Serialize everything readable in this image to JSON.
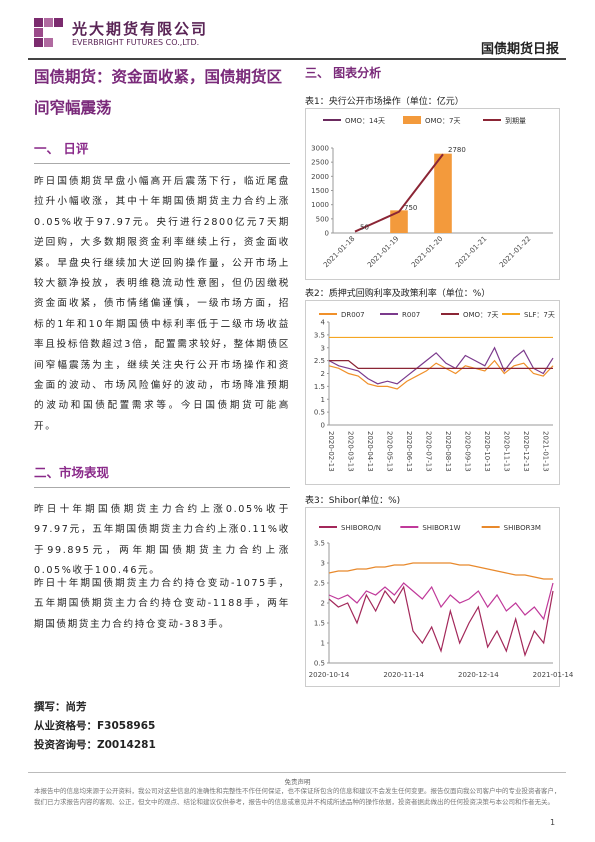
{
  "header": {
    "company_cn": "光大期货有限公司",
    "company_en": "EVERBRIGHT FUTURES CO.,LTD.",
    "report": "国债期货日报"
  },
  "headline": "国债期货：资金面收紧，国债期货区间窄幅震荡",
  "sections": [
    {
      "title": "一、 日评",
      "paragraphs": [
        "昨日国债期货早盘小幅高开后震荡下行，临近尾盘拉升小幅收涨，其中十年期国债期货主力合约上涨0.05%收于97.97元。央行进行2800亿元7天期逆回购，大多数期限资金利率继续上行，资金面收紧。早盘央行继续加大逆回购操作量，公开市场上较大额净投放，表明维稳流动性意图，但仍因缴税资金面收紧，债市情绪偏谨慎，一级市场方面，招标的1年和10年期国债中标利率低于二级市场收益率且投标倍数超过3倍，配置需求较好，整体期债区间窄幅震荡为主，继续关注央行公开市场操作和资金面的波动、市场风险偏好的波动，市场降准预期的波动和国债配置需求等。今日国债期货可能高开。"
      ]
    },
    {
      "title": "二、市场表现",
      "paragraphs": [
        "昨日十年期国债期货主力合约上涨0.05%收于97.97元，五年期国债期货主力合约上涨0.11%收于99.895元，两年期国债期货主力合约上涨0.05%收于100.46元。",
        "昨日十年期国债期货主力合约持仓变动-1075手，五年期国债期货主力合约持仓变动-1188手，两年期国债期货主力合约持仓变动-383手。"
      ]
    }
  ],
  "author": {
    "writer": "撰写：尚芳",
    "qualification": "从业资格号：F3058965",
    "consulting": "投资咨询号：Z0014281"
  },
  "right_title": "三、 图表分析",
  "chart_data": [
    {
      "type": "bar",
      "title": "表1：央行公开市场操作（单位：亿元）",
      "categories": [
        "2021-01-18",
        "2021-01-19",
        "2021-01-20",
        "2021-01-21",
        "2021-01-22"
      ],
      "series": [
        {
          "name": "OMO：14天",
          "type": "line",
          "color": "#6b2a5e",
          "values": [
            null,
            null,
            null,
            null,
            null
          ]
        },
        {
          "name": "OMO：7天",
          "type": "bar",
          "color": "#f39a3c",
          "values": [
            null,
            800,
            2800,
            null,
            null
          ]
        },
        {
          "name": "到期量",
          "type": "line",
          "color": "#8b2535",
          "values": [
            50,
            750,
            2780,
            null,
            null
          ],
          "data_labels": true
        }
      ],
      "ylim": [
        0,
        3000
      ],
      "yticks": [
        0,
        500,
        1000,
        1500,
        2000,
        2500,
        3000
      ]
    },
    {
      "type": "line",
      "title": "表2：质押式回购利率及政策利率（单位：%）",
      "categories": [
        "2020-02-13",
        null,
        "2020-03-13",
        null,
        "2020-04-13",
        null,
        "2020-05-13",
        null,
        "2020-06-13",
        null,
        "2020-07-13",
        null,
        "2020-08-13",
        null,
        "2020-09-13",
        null,
        "2020-10-13",
        null,
        "2020-11-13",
        null,
        "2020-12-13",
        null,
        "2021-01-13",
        null
      ],
      "series": [
        {
          "name": "DR007",
          "color": "#f0902a",
          "values": [
            2.3,
            2.2,
            2.0,
            1.9,
            1.6,
            1.5,
            1.5,
            1.4,
            1.7,
            1.9,
            2.1,
            2.4,
            2.2,
            2.0,
            2.3,
            2.2,
            2.1,
            2.5,
            2.0,
            2.3,
            2.4,
            2.0,
            1.9,
            2.3
          ]
        },
        {
          "name": "R007",
          "color": "#7b3a8c",
          "values": [
            2.5,
            2.3,
            2.2,
            2.1,
            1.8,
            1.6,
            1.7,
            1.6,
            1.9,
            2.2,
            2.5,
            2.8,
            2.4,
            2.2,
            2.7,
            2.5,
            2.3,
            3.0,
            2.1,
            2.6,
            2.9,
            2.2,
            2.0,
            2.6
          ]
        },
        {
          "name": "OMO：7天",
          "color": "#8b2535",
          "values": [
            2.5,
            2.5,
            2.5,
            2.2,
            2.2,
            2.2,
            2.2,
            2.2,
            2.2,
            2.2,
            2.2,
            2.2,
            2.2,
            2.2,
            2.2,
            2.2,
            2.2,
            2.2,
            2.2,
            2.2,
            2.2,
            2.2,
            2.2,
            2.2
          ]
        },
        {
          "name": "SLF：7天",
          "color": "#f5a623",
          "values": [
            3.4,
            3.4,
            3.4,
            3.4,
            3.4,
            3.4,
            3.4,
            3.4,
            3.4,
            3.4,
            3.4,
            3.4,
            3.4,
            3.4,
            3.4,
            3.4,
            3.4,
            3.4,
            3.4,
            3.4,
            3.4,
            3.4,
            3.4,
            3.4
          ]
        }
      ],
      "ylim": [
        0,
        4
      ],
      "yticks": [
        0,
        0.5,
        1,
        1.5,
        2,
        2.5,
        3,
        3.5,
        4
      ]
    },
    {
      "type": "line",
      "title": "表3：Shibor(单位：%)",
      "categories": [
        "2020-10-14",
        null,
        null,
        null,
        null,
        null,
        null,
        null,
        "2020-11-14",
        null,
        null,
        null,
        null,
        null,
        null,
        null,
        "2020-12-14",
        null,
        null,
        null,
        null,
        null,
        null,
        null,
        "2021-01-14"
      ],
      "series": [
        {
          "name": "SHIBORO/N",
          "color": "#a3285a",
          "values": [
            2.1,
            1.9,
            2.0,
            1.5,
            2.2,
            1.8,
            2.3,
            2.0,
            2.4,
            1.3,
            1.0,
            1.4,
            0.8,
            1.8,
            1.0,
            1.5,
            1.9,
            0.9,
            1.3,
            0.8,
            1.6,
            0.7,
            1.3,
            1.0,
            2.3
          ]
        },
        {
          "name": "SHIBOR1W",
          "color": "#c0399a",
          "values": [
            2.2,
            2.1,
            2.2,
            2.0,
            2.3,
            2.2,
            2.4,
            2.2,
            2.5,
            2.3,
            2.1,
            2.4,
            1.9,
            2.2,
            2.0,
            2.1,
            2.3,
            1.9,
            2.2,
            1.8,
            2.0,
            1.7,
            1.9,
            1.6,
            2.5
          ]
        },
        {
          "name": "SHIBOR3M",
          "color": "#e8892c",
          "values": [
            2.75,
            2.8,
            2.8,
            2.85,
            2.85,
            2.9,
            2.9,
            2.95,
            2.95,
            3.0,
            3.0,
            3.0,
            3.0,
            3.0,
            2.95,
            2.95,
            2.9,
            2.85,
            2.8,
            2.75,
            2.7,
            2.7,
            2.65,
            2.6,
            2.6
          ]
        }
      ],
      "ylim": [
        0.5,
        3.5
      ],
      "yticks": [
        0.5,
        1,
        1.5,
        2,
        2.5,
        3,
        3.5
      ]
    }
  ],
  "footer": {
    "disclaimer_title": "免责声明",
    "disclaimer": "本报告中的信息均来源于公开资料，我公司对这些信息的准确性和完整性不作任何保证，也不保证所包含的信息和建议不会发生任何变更。报告仅面向我公司客户中的专业投资者客户，我们已力求报告内容的客观、公正，但文中的观点、结论和建议仅供参考，报告中的信息或意见并不构成所述品种的操作依据，投资者据此做出的任何投资决策与本公司和作者无关。",
    "page": "1"
  }
}
